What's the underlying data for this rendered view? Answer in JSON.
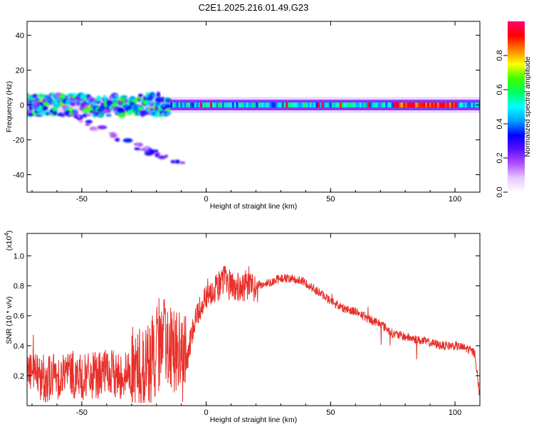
{
  "title": "C2E1.2025.216.01.49.G23",
  "chart_data": [
    {
      "type": "heatmap",
      "xlabel": "Height of straight line (km)",
      "ylabel": "Frequency (Hz)",
      "xlim": [
        -72,
        110
      ],
      "ylim": [
        -50,
        48
      ],
      "xticks": [
        -50,
        0,
        50,
        100
      ],
      "yticks": [
        40,
        20,
        0,
        -20,
        -40
      ],
      "colorbar": {
        "label": "Normalized spectral amplitude",
        "range": [
          0,
          1
        ],
        "ticks": [
          0.0,
          0.2,
          0.4,
          0.6,
          0.8
        ],
        "tick_labels": [
          "0.0",
          "0.2",
          "0.4",
          "0.6",
          "0.8"
        ],
        "colormap": [
          "#ffffff",
          "#e6c8ff",
          "#b050ff",
          "#5a10ff",
          "#0000ff",
          "#00a0ff",
          "#00ffff",
          "#00ff60",
          "#40ff00",
          "#ffff00",
          "#ff8000",
          "#ff0000",
          "#ff0070"
        ]
      },
      "features": [
        {
          "name": "main_band",
          "x_range": [
            -72,
            110
          ],
          "freq_range": [
            -2,
            2
          ],
          "level": 0.5
        },
        {
          "name": "scatter_branch",
          "x_range": [
            -52,
            -8
          ],
          "freq_range": [
            -36,
            -8
          ],
          "level": 0.3
        }
      ]
    },
    {
      "type": "line",
      "xlabel": "Height of straight line (km)",
      "ylabel": "SNR (10 * v/v)",
      "multiplier": "(x10",
      "multiplier_exp": "4",
      "xlim": [
        -72,
        110
      ],
      "ylim": [
        0,
        1.15
      ],
      "xticks": [
        -50,
        0,
        50,
        100
      ],
      "yticks": [
        0.2,
        0.4,
        0.6,
        0.8,
        1.0
      ],
      "ytick_labels": [
        "0.2",
        "0.4",
        "0.6",
        "0.8",
        "1.0"
      ],
      "series": [
        {
          "color": "#e8302a",
          "x": [
            -72,
            -65,
            -60,
            -55,
            -50,
            -45,
            -40,
            -35,
            -30,
            -25,
            -20,
            -15,
            -10,
            -7,
            -5,
            0,
            5,
            8,
            10,
            15,
            20,
            25,
            30,
            35,
            40,
            45,
            50,
            55,
            60,
            65,
            70,
            75,
            80,
            85,
            90,
            95,
            100,
            105,
            108,
            110
          ],
          "values": [
            0.25,
            0.18,
            0.2,
            0.22,
            0.18,
            0.2,
            0.22,
            0.2,
            0.22,
            0.24,
            0.35,
            0.45,
            0.3,
            0.35,
            0.55,
            0.75,
            0.8,
            0.85,
            0.8,
            0.78,
            0.8,
            0.82,
            0.85,
            0.85,
            0.82,
            0.76,
            0.7,
            0.65,
            0.63,
            0.58,
            0.55,
            0.48,
            0.46,
            0.44,
            0.42,
            0.4,
            0.4,
            0.38,
            0.35,
            0.05
          ]
        }
      ]
    }
  ]
}
